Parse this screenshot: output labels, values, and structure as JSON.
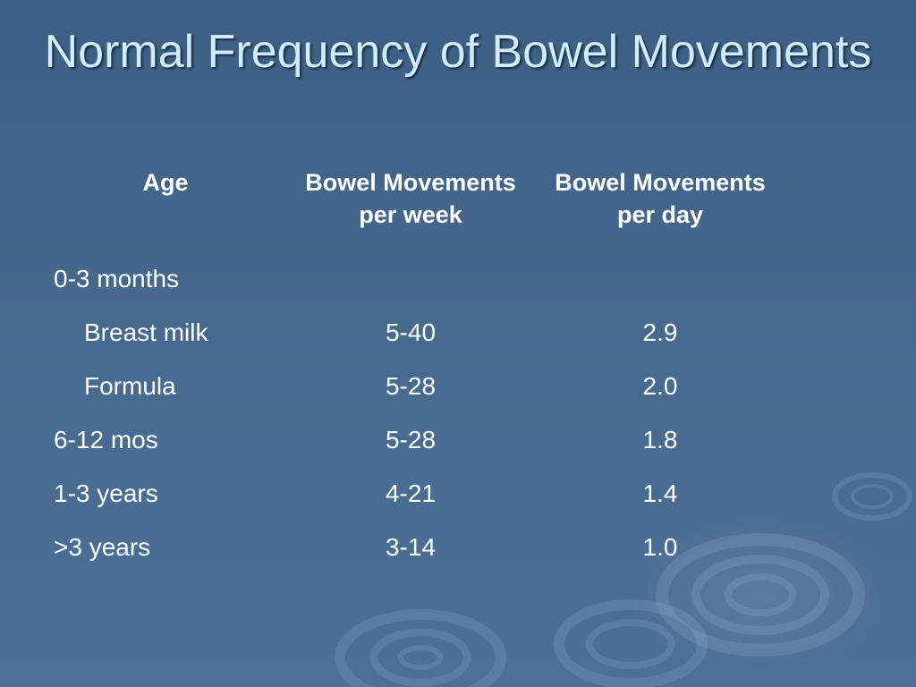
{
  "slide": {
    "title": "Normal Frequency of Bowel Movements"
  },
  "table": {
    "headers": {
      "age": "Age",
      "per_week": "Bowel Movements per week",
      "per_day": "Bowel Movements per day"
    },
    "rows": [
      {
        "age": "0-3 months",
        "per_week": "",
        "per_day": ""
      },
      {
        "age": "Breast milk",
        "per_week": "5-40",
        "per_day": "2.9"
      },
      {
        "age": "Formula",
        "per_week": "5-28",
        "per_day": "2.0"
      },
      {
        "age": "6-12 mos",
        "per_week": "5-28",
        "per_day": "1.8"
      },
      {
        "age": "1-3 years",
        "per_week": "4-21",
        "per_day": "1.4"
      },
      {
        "age": ">3 years",
        "per_week": "3-14",
        "per_day": "1.0"
      }
    ]
  },
  "colors": {
    "background": "#46698e",
    "title": "#d2ecff",
    "text": "#ffffff"
  }
}
